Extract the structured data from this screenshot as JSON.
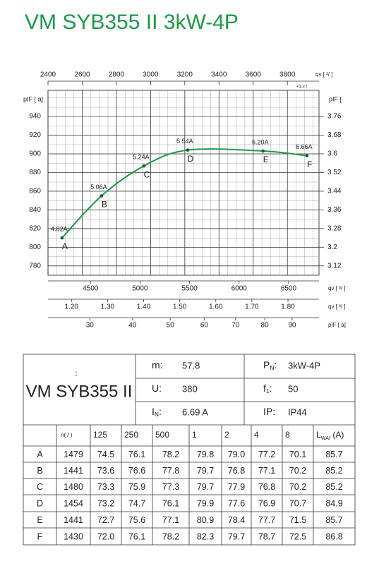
{
  "title": "VM SYB355 II 3kW-4P",
  "chart_data": {
    "type": "line",
    "x_label": "qv [ ³/ ]",
    "x_note": "+1.2 /",
    "y_label": "pIF [ a]",
    "y2_label": "pIF [",
    "xlim": [
      2400,
      3985
    ],
    "xticks": [
      2400,
      2600,
      2800,
      3000,
      3200,
      3400,
      3600,
      3800
    ],
    "ylim": [
      770,
      968
    ],
    "yticks": [
      780,
      800,
      820,
      840,
      860,
      880,
      900,
      920,
      940
    ],
    "y2lim": [
      3.08,
      3.872
    ],
    "y2ticks": [
      3.12,
      3.2,
      3.28,
      3.36,
      3.44,
      3.52,
      3.6,
      3.68,
      3.76
    ],
    "grid": true,
    "minor_grid": true,
    "series": [
      {
        "color": "#1a9b48",
        "x": [
          2482,
          2713,
          2961,
          3217,
          3658,
          3914
        ],
        "values": [
          810,
          855,
          887,
          904,
          903,
          898
        ],
        "point_labels": [
          "A",
          "B",
          "C",
          "D",
          "E",
          "F"
        ],
        "currents": [
          "4.82A",
          "5.06A",
          "5.24A",
          "5.54A",
          "6.20A",
          "6.66A"
        ]
      }
    ],
    "extra_x_axes": [
      {
        "label": "qv [ ³/ ]",
        "xlim": [
          4071,
          6807
        ],
        "xticks": [
          4500,
          5000,
          5500,
          6000,
          6500
        ]
      },
      {
        "label": "qv [ ³/ ]",
        "xlim": [
          1.135,
          1.886
        ],
        "xticks": [
          {
            "value": 1.2,
            "label": "1.20"
          },
          {
            "value": 1.3,
            "label": "1.30"
          },
          {
            "value": 1.4,
            "label": "1.40"
          },
          {
            "value": 1.5,
            "label": "1.50"
          },
          {
            "value": 1.6,
            "label": "1.60"
          },
          {
            "value": 1.7,
            "label": "1.70"
          },
          {
            "value": 1.8,
            "label": "1.80"
          }
        ]
      },
      {
        "label": "pIF [ a]",
        "scale": "sqrt",
        "xlim": [
          21.6,
          100.4
        ],
        "xticks": [
          30,
          40,
          50,
          60,
          70,
          80,
          90
        ]
      }
    ]
  },
  "spec": {
    "model_note": ":",
    "model": "VM SYB355 II",
    "params": [
      {
        "symbol": "m:",
        "value": "57.8"
      },
      {
        "symbol": "U:",
        "value": "380"
      },
      {
        "symbol": "I",
        "sub": "N",
        "suffix": ":",
        "value": "6.69  A"
      },
      {
        "symbol": "P",
        "sub": "N",
        "suffix": ":",
        "value": "3kW-4P"
      },
      {
        "symbol": "f",
        "sub": "1",
        "suffix": ":",
        "value": "50"
      },
      {
        "symbol": "IP:",
        "value": "IP44"
      }
    ]
  },
  "noise": {
    "header": [
      {
        "symbol": "n( / )"
      },
      {
        "symbol": "125"
      },
      {
        "symbol": "250"
      },
      {
        "symbol": "500"
      },
      {
        "symbol": "1"
      },
      {
        "symbol": "2"
      },
      {
        "symbol": "4"
      },
      {
        "symbol": "8"
      },
      {
        "symbol": "L",
        "sub": "WAI",
        "suffix": "   (A)"
      }
    ],
    "rows": [
      [
        "A",
        "1479",
        "74.5",
        "76.1",
        "78.2",
        "79.8",
        "79.0",
        "77.2",
        "70.1",
        "85.7"
      ],
      [
        "B",
        "1441",
        "73.6",
        "76.6",
        "77.8",
        "79.7",
        "76.8",
        "77.1",
        "70.2",
        "85.2"
      ],
      [
        "C",
        "1480",
        "73.3",
        "75.9",
        "77.3",
        "79.7",
        "77.9",
        "76.8",
        "70.2",
        "85.2"
      ],
      [
        "D",
        "1454",
        "73.2",
        "74.7",
        "76.1",
        "79.9",
        "77.6",
        "76.9",
        "70.7",
        "84.9"
      ],
      [
        "E",
        "1441",
        "72.7",
        "75.6",
        "77.1",
        "80.9",
        "78.4",
        "77.7",
        "71.5",
        "85.7"
      ],
      [
        "F",
        "1430",
        "72.0",
        "76.1",
        "78.2",
        "82.3",
        "79.7",
        "78.7",
        "72.5",
        "86.8"
      ]
    ]
  }
}
